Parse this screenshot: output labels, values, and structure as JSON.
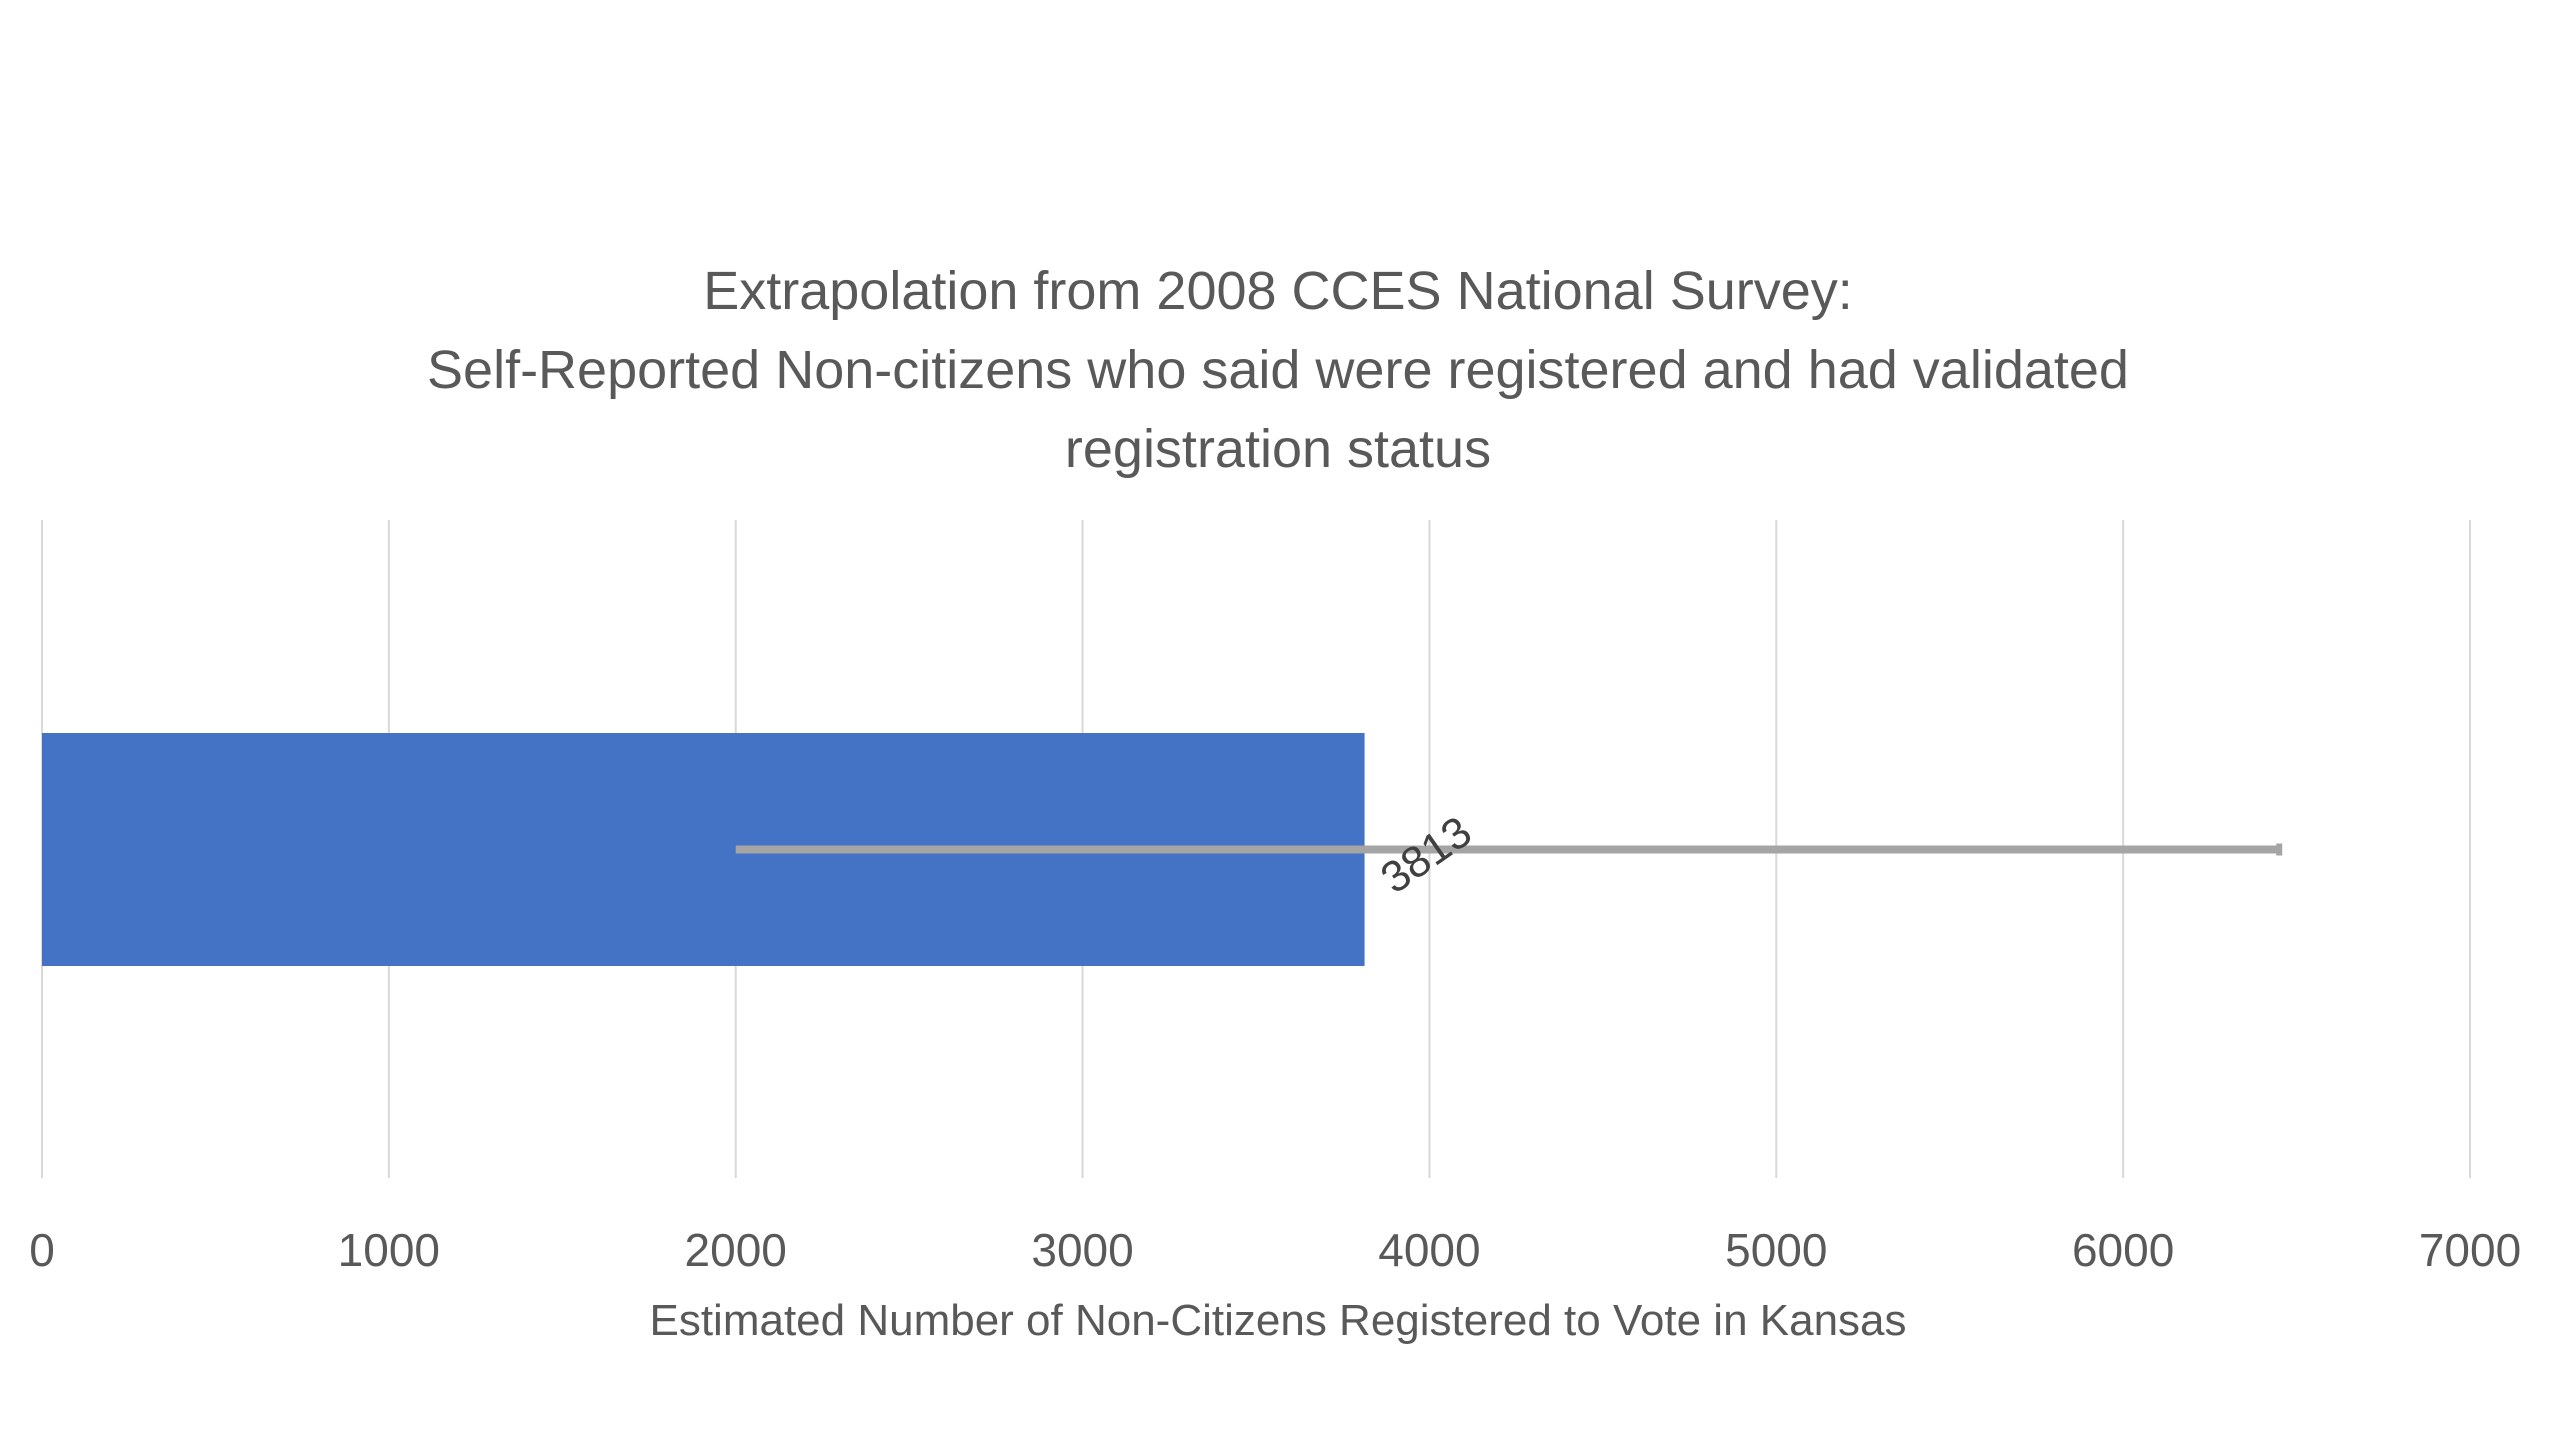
{
  "chart_data": {
    "type": "bar",
    "orientation": "horizontal",
    "title_lines": [
      "Extrapolation from 2008 CCES National Survey:",
      "Self-Reported Non-citizens who said were registered and had validated",
      "registration status"
    ],
    "xlabel": "Estimated Number of Non-Citizens Registered to Vote in Kansas",
    "ylabel": "",
    "xlim": [
      0,
      7000
    ],
    "x_ticks": [
      0,
      1000,
      2000,
      3000,
      4000,
      5000,
      6000,
      7000
    ],
    "x_tick_labels": [
      "0",
      "1000",
      "2000",
      "3000",
      "4000",
      "5000",
      "6000",
      "7000"
    ],
    "grid": "vertical",
    "legend": "none",
    "bars": [
      {
        "value": 3813,
        "data_label": "3813",
        "error_low": 2000,
        "error_high": 6450
      }
    ],
    "colors": {
      "bar": "#4472c4",
      "error_bar": "#a5a5a5",
      "gridline": "#d9d9d9",
      "text": "#595959"
    }
  }
}
